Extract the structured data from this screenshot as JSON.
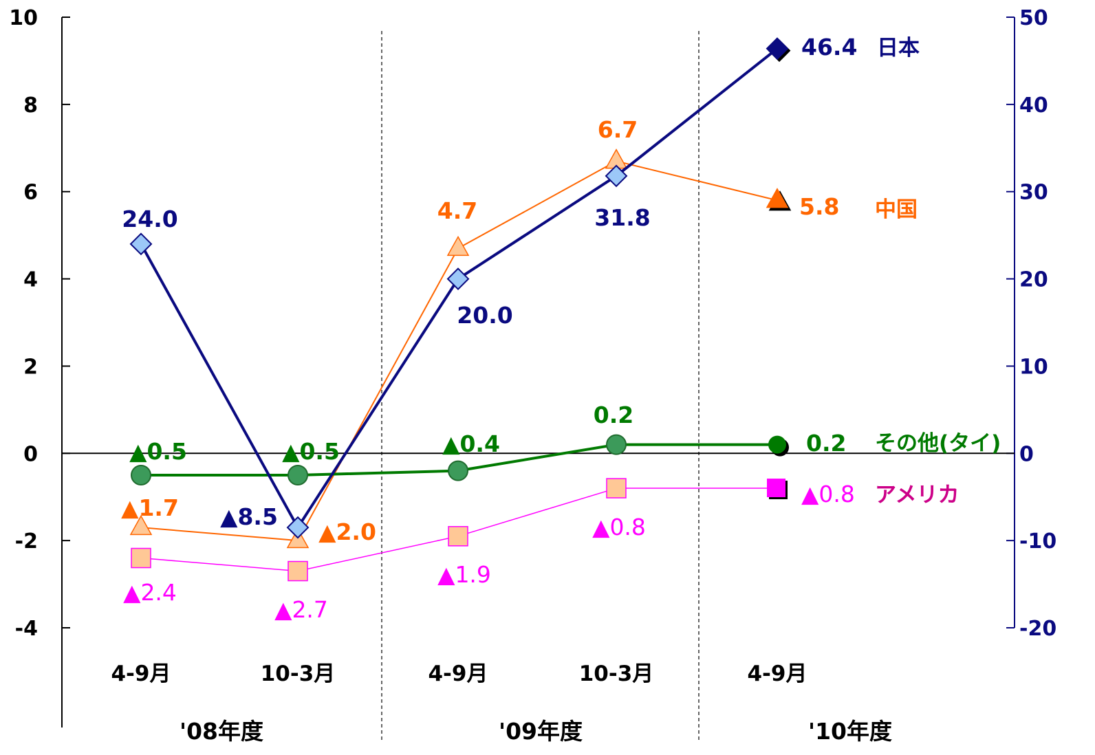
{
  "chart_data": {
    "type": "line",
    "title": "",
    "categories": [
      "4-9月",
      "10-3月",
      "4-9月",
      "10-3月",
      "4-9月"
    ],
    "fiscal_years": [
      "'08年度",
      "'09年度",
      "'10年度"
    ],
    "left_axis": {
      "ylim": [
        -4,
        10
      ],
      "ticks": [
        "-4",
        "-2",
        "0",
        "2",
        "4",
        "6",
        "8",
        "10"
      ]
    },
    "right_axis": {
      "ylim": [
        -20,
        50
      ],
      "ticks": [
        "-20",
        "-10",
        "0",
        "10",
        "20",
        "30",
        "40",
        "50"
      ]
    },
    "grid": false,
    "series": [
      {
        "name": "日本",
        "axis": "right",
        "color": "#0a0a80",
        "marker": "diamond",
        "values": [
          24.0,
          -8.5,
          20.0,
          31.8,
          46.4
        ],
        "labels": [
          "24.0",
          "▲8.5",
          "20.0",
          "31.8",
          "46.4"
        ]
      },
      {
        "name": "中国",
        "axis": "left",
        "color": "#ff6600",
        "marker": "triangle",
        "values": [
          -1.7,
          -2.0,
          4.7,
          6.7,
          5.8
        ],
        "labels": [
          "▲1.7",
          "▲2.0",
          "4.7",
          "6.7",
          "5.8"
        ]
      },
      {
        "name": "その他(タイ)",
        "axis": "left",
        "color": "#007a00",
        "marker": "circle",
        "values": [
          -0.5,
          -0.5,
          -0.4,
          0.2,
          0.2
        ],
        "labels": [
          "▲0.5",
          "▲0.5",
          "▲0.4",
          "0.2",
          "0.2"
        ]
      },
      {
        "name": "アメリカ",
        "axis": "left",
        "color": "#ff00ff",
        "marker": "square",
        "values": [
          -2.4,
          -2.7,
          -1.9,
          -0.8,
          -0.8
        ],
        "labels": [
          "▲2.4",
          "▲2.7",
          "▲1.9",
          "▲0.8",
          "▲0.8"
        ]
      }
    ]
  }
}
